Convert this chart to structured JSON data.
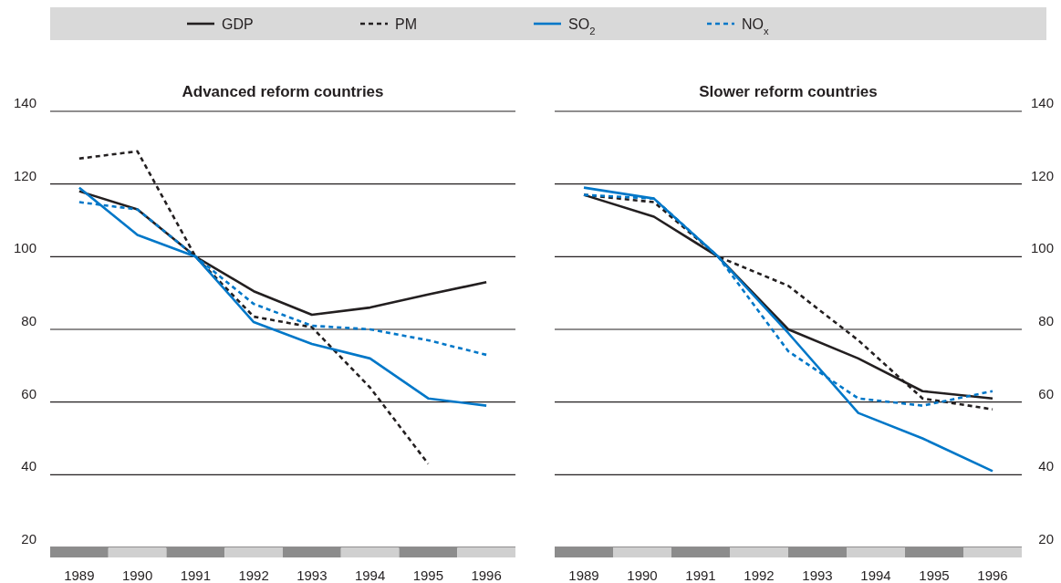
{
  "chart_data": [
    {
      "type": "line",
      "title": "Advanced reform countries",
      "x": [
        1989,
        1990,
        1991,
        1992,
        1993,
        1994,
        1995,
        1996
      ],
      "xlim": [
        1988.5,
        1996.5
      ],
      "xticks": [
        1989,
        1990,
        1991,
        1992,
        1993,
        1994,
        1995,
        1996
      ],
      "ylim": [
        20,
        140
      ],
      "yticks": [
        20,
        40,
        60,
        80,
        100,
        120,
        140
      ],
      "grid": "y",
      "legend": "top",
      "marker": "none",
      "series": [
        {
          "name": "GDP",
          "color": "#231f20",
          "line_style": "solid",
          "values": [
            118,
            113,
            100,
            90.5,
            84,
            86,
            89.6,
            93
          ]
        },
        {
          "name": "PM",
          "color": "#231f20",
          "line_style": "dashed",
          "values": [
            127,
            129,
            100,
            83.5,
            80.6,
            64,
            43,
            null
          ]
        },
        {
          "name": "SO$_{2}$",
          "color": "#0077c8",
          "line_style": "solid",
          "values": [
            119,
            106,
            100,
            82,
            76,
            72,
            61,
            59
          ]
        },
        {
          "name": "NO$_{x}$",
          "color": "#0077c8",
          "line_style": "dashed",
          "values": [
            115,
            113,
            100,
            87,
            81,
            80,
            77,
            73
          ]
        }
      ]
    },
    {
      "type": "line",
      "title": "Slower reform countries",
      "xlim": [
        1988.5,
        1996.5
      ],
      "xticks": [
        1989,
        1990,
        1991,
        1992,
        1993,
        1994,
        1995,
        1996
      ],
      "ylim": [
        20,
        140
      ],
      "yticks": [
        20,
        40,
        60,
        80,
        100,
        120,
        140
      ],
      "grid": "y",
      "marker": "none",
      "series": [
        {
          "color": "#231f20",
          "line_style": "solid",
          "x": [
            1989,
            1990.2,
            1991.3,
            1992.5,
            1993.7,
            1994.8,
            1996
          ],
          "values": [
            117,
            111,
            100,
            80,
            72,
            63,
            61
          ]
        },
        {
          "color": "#231f20",
          "line_style": "dashed",
          "x": [
            1989,
            1990.2,
            1991.3,
            1992.5,
            1993.7,
            1994.8,
            1996
          ],
          "values": [
            117,
            115,
            100,
            92,
            77,
            61,
            58
          ]
        },
        {
          "color": "#0077c8",
          "line_style": "solid",
          "x": [
            1989,
            1990.2,
            1991.3,
            1992.5,
            1993.7,
            1994.8,
            1996
          ],
          "values": [
            119,
            116,
            100,
            79,
            57,
            50,
            41
          ]
        },
        {
          "color": "#0077c8",
          "line_style": "dashed",
          "x": [
            1989,
            1990.2,
            1991.3,
            1992.5,
            1993.7,
            1994.8,
            1996
          ],
          "values": [
            117,
            116,
            100,
            74,
            61,
            59,
            63
          ]
        }
      ]
    }
  ]
}
